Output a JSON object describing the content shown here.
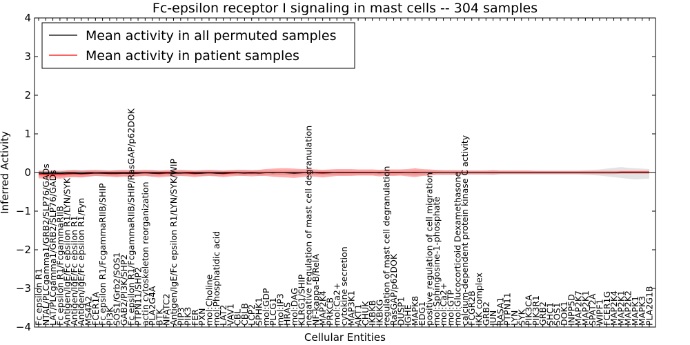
{
  "chart_data": {
    "type": "line",
    "title": "Fc-epsilon receptor I signaling in mast cells -- 304 samples",
    "xlabel": "Cellular Entities",
    "ylabel": "Inferred Activity",
    "ylim": [
      -4,
      4
    ],
    "yticks": [
      -4,
      -3,
      -2,
      -1,
      0,
      1,
      2,
      3,
      4
    ],
    "yticklabels": [
      "−4",
      "−3",
      "−2",
      "−1",
      "0",
      "1",
      "2",
      "3",
      "4"
    ],
    "legend": {
      "location": "top-left",
      "entries": [
        {
          "label": "Mean activity in all permuted samples",
          "color": "#000000"
        },
        {
          "label": "Mean activity in patient samples",
          "color": "#ff0000"
        }
      ]
    },
    "categories": [
      "Fc epsilon R1",
      "NTAL/PLCgamma1/GRB2/SLP76/GADs",
      "LAT/PLCgamma1/GRB2/SLP76/GADs",
      "Fc epsilon R1/FcgammaRIIB",
      "Antigen/IgE/Fc epsilon R1/LYN/SYK",
      "Antigen/IgE/Fc epsilon R1",
      "Antigen/IgE/Fc epsilon R1/Fyn",
      "MS4A2",
      "FCER1A",
      "Fc epsilon R1/FcgammaRIIB/SHIP",
      "PI3K",
      "SOS1/Grb2/SOS1",
      "GAB2/PI3K/SHP2",
      "Fc epsilon R1/FcgammaRIIB/SHIP/RasGAP/p62DOK",
      "PTPN11/SHP2",
      "actin cytoskeleton reorganization",
      "PLA2G4A",
      "BTK",
      "NFATC2",
      "Antigen/IgE/Fc epsilon R1/LYN/SYK/WIP",
      "PIP3",
      "PIK3",
      "FER",
      "PXN",
      "mol:Choline",
      "mol:Phosphatidic acid",
      "LAT2",
      "VAV1",
      "CBL",
      "CBLB",
      "LCP2",
      "SPHK1",
      "mol:GDP",
      "PLCG1",
      "mol:IP3",
      "HRAS",
      "mol:DAG",
      "KLRG1/SHIP",
      "negative regulation of mast cell degranulation",
      "NF-kappa-B/RelA",
      "MAP2K4",
      "PRKCB",
      "mol:Ca2+",
      "cytokine secretion",
      "MAP3K1",
      "AKT1",
      "CHUK",
      "IKBKB",
      "IKBKG",
      "regulation of mast cell degranulation",
      "RasGAP/p62DOK",
      "DUSP1",
      "IGHE",
      "MAPK8",
      "EDG1",
      "positive regulation of cell migration",
      "mol:Sphingosine-1-phosphate",
      "mol:Ca2+",
      "mol:GTP",
      "mol:Glucocorticoid Dexamethasone",
      "calcium-dependent protein kinase C activity",
      "FCGR2B",
      "IKK complex",
      "GRB2",
      "JUN",
      "RASA1",
      "PTPN11",
      "LYN",
      "SYK",
      "PIK3CA",
      "PIK3R1",
      "GRB2",
      "SHC1",
      "SOS1",
      "DOK1",
      "INPP5D",
      "MAP2K7",
      "MAP2K1",
      "SPAT2A",
      "WIPF1",
      "FCER1G",
      "MAP2K4",
      "MAP2K1",
      "MAP2K2",
      "MAPK1",
      "MAPK3",
      "PLA2G1B"
    ],
    "series": [
      {
        "name": "Mean activity in all permuted samples",
        "color": "#000000",
        "values": [
          -0.02,
          -0.03,
          -0.02,
          -0.03,
          -0.02,
          -0.02,
          -0.03,
          -0.02,
          -0.02,
          -0.02,
          -0.02,
          -0.02,
          -0.02,
          -0.02,
          -0.02,
          -0.01,
          -0.02,
          -0.02,
          -0.01,
          -0.02,
          -0.02,
          -0.01,
          -0.02,
          -0.02,
          -0.01,
          -0.02,
          -0.02,
          -0.01,
          -0.01,
          -0.02,
          -0.01,
          -0.02,
          -0.01,
          -0.01,
          -0.01,
          -0.01,
          -0.02,
          -0.01,
          -0.01,
          -0.01,
          -0.01,
          -0.01,
          -0.01,
          -0.01,
          -0.01,
          -0.01,
          -0.01,
          -0.01,
          -0.01,
          -0.01,
          -0.01,
          -0.01,
          0.0,
          -0.01,
          0.0,
          0.0,
          0.0,
          0.0,
          0.0,
          0.0,
          0.0,
          0.0,
          0.0,
          0.0,
          0.0,
          0.0,
          0.0,
          0.0,
          0.0,
          0.0,
          0.0,
          0.0,
          0.0,
          0.0,
          0.0,
          0.0,
          0.0,
          0.0,
          0.0,
          0.0,
          0.0,
          0.0,
          0.0,
          0.0,
          0.0,
          0.0,
          0.0
        ],
        "band_lower": [
          -0.1,
          -0.12,
          -0.1,
          -0.12,
          -0.11,
          -0.11,
          -0.12,
          -0.1,
          -0.09,
          -0.09,
          -0.09,
          -0.1,
          -0.09,
          -0.1,
          -0.09,
          -0.08,
          -0.1,
          -0.09,
          -0.08,
          -0.09,
          -0.08,
          -0.08,
          -0.08,
          -0.09,
          -0.08,
          -0.09,
          -0.08,
          -0.07,
          -0.07,
          -0.08,
          -0.07,
          -0.08,
          -0.07,
          -0.07,
          -0.07,
          -0.07,
          -0.08,
          -0.07,
          -0.07,
          -0.07,
          -0.07,
          -0.07,
          -0.07,
          -0.07,
          -0.06,
          -0.06,
          -0.06,
          -0.06,
          -0.07,
          -0.07,
          -0.07,
          -0.06,
          -0.07,
          -0.08,
          -0.07,
          -0.06,
          -0.05,
          -0.05,
          -0.05,
          -0.05,
          -0.05,
          -0.05,
          -0.05,
          -0.05,
          -0.06,
          -0.05,
          -0.05,
          -0.05,
          -0.05,
          -0.05,
          -0.05,
          -0.05,
          -0.05,
          -0.05,
          -0.05,
          -0.05,
          -0.05,
          -0.06,
          -0.07,
          -0.08,
          -0.1,
          -0.12,
          -0.14,
          -0.16,
          -0.18,
          -0.17,
          -0.16
        ],
        "band_upper": [
          0.06,
          0.06,
          0.06,
          0.06,
          0.07,
          0.07,
          0.06,
          0.06,
          0.05,
          0.05,
          0.05,
          0.06,
          0.05,
          0.06,
          0.05,
          0.05,
          0.06,
          0.05,
          0.05,
          0.05,
          0.05,
          0.05,
          0.05,
          0.05,
          0.05,
          0.05,
          0.05,
          0.05,
          0.05,
          0.05,
          0.05,
          0.05,
          0.05,
          0.05,
          0.05,
          0.05,
          0.05,
          0.05,
          0.05,
          0.05,
          0.05,
          0.05,
          0.05,
          0.05,
          0.05,
          0.05,
          0.05,
          0.05,
          0.05,
          0.05,
          0.05,
          0.05,
          0.05,
          0.06,
          0.05,
          0.05,
          0.05,
          0.05,
          0.05,
          0.05,
          0.05,
          0.05,
          0.05,
          0.05,
          0.05,
          0.05,
          0.05,
          0.05,
          0.05,
          0.05,
          0.05,
          0.05,
          0.05,
          0.05,
          0.05,
          0.05,
          0.05,
          0.06,
          0.07,
          0.08,
          0.1,
          0.12,
          0.14,
          0.12,
          0.11,
          0.1,
          0.09
        ]
      },
      {
        "name": "Mean activity in patient samples",
        "color": "#ff0000",
        "values": [
          -0.05,
          -0.06,
          -0.05,
          -0.06,
          -0.04,
          -0.03,
          -0.04,
          -0.03,
          -0.01,
          -0.02,
          -0.03,
          -0.03,
          -0.02,
          -0.03,
          -0.02,
          -0.01,
          -0.02,
          -0.03,
          -0.02,
          -0.02,
          -0.01,
          -0.02,
          -0.03,
          -0.02,
          -0.01,
          -0.02,
          -0.03,
          -0.02,
          -0.01,
          -0.01,
          -0.02,
          -0.01,
          0.0,
          -0.01,
          0.0,
          -0.01,
          -0.02,
          -0.01,
          0.0,
          -0.01,
          -0.02,
          -0.01,
          0.0,
          0.0,
          0.0,
          0.0,
          0.0,
          0.0,
          -0.01,
          0.0,
          0.0,
          0.0,
          0.0,
          0.0,
          0.0,
          0.0,
          0.0,
          0.0,
          0.0,
          0.0,
          0.0,
          0.0,
          0.0,
          0.0,
          0.0,
          0.0,
          0.0,
          0.0,
          0.0,
          0.0,
          0.0,
          0.0,
          0.0,
          0.0,
          0.0,
          0.0,
          0.0,
          0.0,
          0.0,
          0.0,
          0.0,
          0.0,
          0.01,
          0.01,
          0.01,
          0.01,
          0.01
        ],
        "band_lower": [
          -0.15,
          -0.16,
          -0.15,
          -0.16,
          -0.13,
          -0.12,
          -0.13,
          -0.11,
          -0.09,
          -0.1,
          -0.11,
          -0.12,
          -0.11,
          -0.12,
          -0.1,
          -0.09,
          -0.11,
          -0.13,
          -0.11,
          -0.1,
          -0.09,
          -0.1,
          -0.12,
          -0.1,
          -0.09,
          -0.1,
          -0.12,
          -0.1,
          -0.09,
          -0.09,
          -0.1,
          -0.09,
          -0.09,
          -0.11,
          -0.12,
          -0.13,
          -0.14,
          -0.12,
          -0.1,
          -0.11,
          -0.13,
          -0.11,
          -0.09,
          -0.09,
          -0.09,
          -0.08,
          -0.08,
          -0.08,
          -0.1,
          -0.09,
          -0.09,
          -0.08,
          -0.1,
          -0.12,
          -0.09,
          -0.08,
          -0.06,
          -0.06,
          -0.06,
          -0.06,
          -0.05,
          -0.05,
          -0.05,
          -0.05,
          -0.05,
          -0.04,
          -0.04,
          -0.04,
          -0.04,
          -0.04,
          -0.04,
          -0.04,
          -0.04,
          -0.04,
          -0.04,
          -0.04,
          -0.04,
          -0.04,
          -0.04,
          -0.04,
          -0.04,
          -0.04,
          -0.03,
          -0.03,
          -0.03,
          -0.03,
          -0.03
        ],
        "band_upper": [
          0.04,
          0.03,
          0.04,
          0.03,
          0.05,
          0.06,
          0.05,
          0.06,
          0.07,
          0.06,
          0.05,
          0.06,
          0.07,
          0.06,
          0.06,
          0.07,
          0.06,
          0.05,
          0.06,
          0.06,
          0.07,
          0.06,
          0.05,
          0.06,
          0.07,
          0.06,
          0.05,
          0.06,
          0.07,
          0.07,
          0.06,
          0.07,
          0.09,
          0.1,
          0.11,
          0.11,
          0.1,
          0.09,
          0.09,
          0.08,
          0.07,
          0.08,
          0.09,
          0.09,
          0.09,
          0.08,
          0.08,
          0.08,
          0.07,
          0.08,
          0.08,
          0.08,
          0.09,
          0.11,
          0.09,
          0.08,
          0.07,
          0.06,
          0.06,
          0.06,
          0.05,
          0.05,
          0.05,
          0.05,
          0.06,
          0.05,
          0.05,
          0.05,
          0.05,
          0.05,
          0.04,
          0.04,
          0.04,
          0.04,
          0.04,
          0.04,
          0.04,
          0.04,
          0.04,
          0.04,
          0.04,
          0.04,
          0.04,
          0.04,
          0.04,
          0.04,
          0.04
        ]
      }
    ]
  }
}
